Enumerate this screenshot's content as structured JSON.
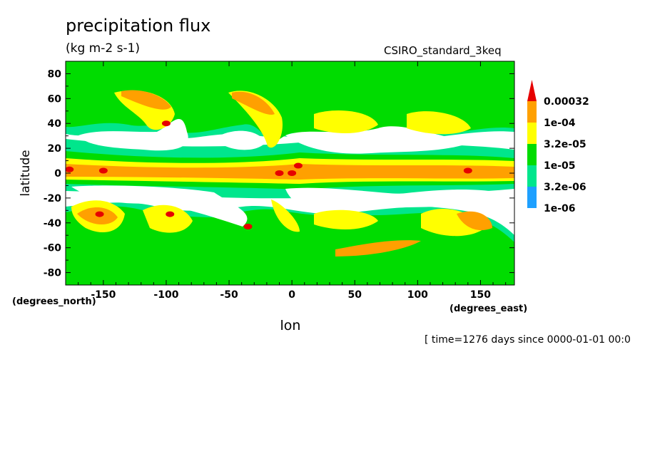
{
  "header": {
    "title": "precipitation flux",
    "units": "(kg m-2 s-1)",
    "model": "CSIRO_standard_3keq",
    "x_units": "(degrees_east)",
    "y_units": "(degrees_north)",
    "timestamp": "[ time=1276 days since 0000-01-01 00:0"
  },
  "colors": {
    "lt_1e06": "#ffffff",
    "b_1e06_32e06": "#1ea0ff",
    "b_32e06_1e05": "#00e68c",
    "b_1e05_32e05": "#00dc00",
    "b_32e05_1e04": "#ffff00",
    "b_1e04_32e04": "#ffa000",
    "gt_32e04": "#e60000"
  },
  "chart_data": {
    "type": "heatmap",
    "title": "precipitation flux",
    "subtitle": "(kg m-2 s-1)",
    "xlabel": "lon",
    "ylabel": "latitude",
    "xlim": [
      -180,
      177
    ],
    "ylim": [
      -90,
      90
    ],
    "x_ticks": [
      -150,
      -100,
      -50,
      0,
      50,
      100,
      150
    ],
    "y_ticks": [
      80,
      60,
      40,
      20,
      0,
      -20,
      -40,
      -60,
      -80
    ],
    "legend_levels": [
      "0.00032",
      "1e-04",
      "3.2e-05",
      "1e-05",
      "3.2e-06",
      "1e-06"
    ],
    "legend_placement": "right",
    "regions": [
      {
        "lon": -177,
        "lat": 3,
        "level": "gt_32e04"
      },
      {
        "lon": -150,
        "lat": 2,
        "level": "gt_32e04"
      },
      {
        "lon": -10,
        "lat": 0,
        "level": "gt_32e04"
      },
      {
        "lon": 0,
        "lat": 0,
        "level": "gt_32e04"
      },
      {
        "lon": 5,
        "lat": 6,
        "level": "gt_32e04"
      },
      {
        "lon": 140,
        "lat": 2,
        "level": "gt_32e04"
      },
      {
        "lon": -153,
        "lat": -33,
        "level": "gt_32e04"
      },
      {
        "lon": -97,
        "lat": -33,
        "level": "gt_32e04"
      },
      {
        "lon": -35,
        "lat": -43,
        "level": "gt_32e04"
      },
      {
        "lon": -100,
        "lat": 40,
        "level": "gt_32e04"
      }
    ]
  }
}
